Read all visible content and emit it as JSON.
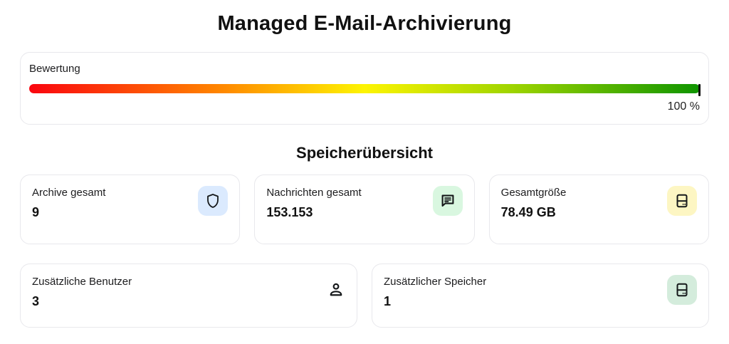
{
  "page": {
    "title": "Managed E-Mail-Archivierung"
  },
  "rating": {
    "label": "Bewertung",
    "percent_value": 100,
    "percent_label": "100 %",
    "gradient_colors": [
      "#fa050f",
      "#ff8400",
      "#fdf403",
      "#9ed400",
      "#0e9400"
    ],
    "gradient_stops": [
      "0%",
      "28%",
      "50%",
      "72%",
      "100%"
    ],
    "marker_color": "#111111"
  },
  "storage_overview": {
    "heading": "Speicherübersicht",
    "cards": [
      {
        "label": "Archive gesamt",
        "value": "9",
        "icon": "shield-icon",
        "badge_color": "#dbeafe"
      },
      {
        "label": "Nachrichten gesamt",
        "value": "153.153",
        "icon": "message-icon",
        "badge_color": "#d9f7e0"
      },
      {
        "label": "Gesamtgröße",
        "value": "78.49 GB",
        "icon": "harddrive-icon",
        "badge_color": "#fdf6c3"
      },
      {
        "label": "Zusätzliche Benutzer",
        "value": "3",
        "icon": "person-icon",
        "badge_color": null
      },
      {
        "label": "Zusätzlicher Speicher",
        "value": "1",
        "icon": "harddrive-icon",
        "badge_color": "#d4ecdc"
      }
    ]
  }
}
